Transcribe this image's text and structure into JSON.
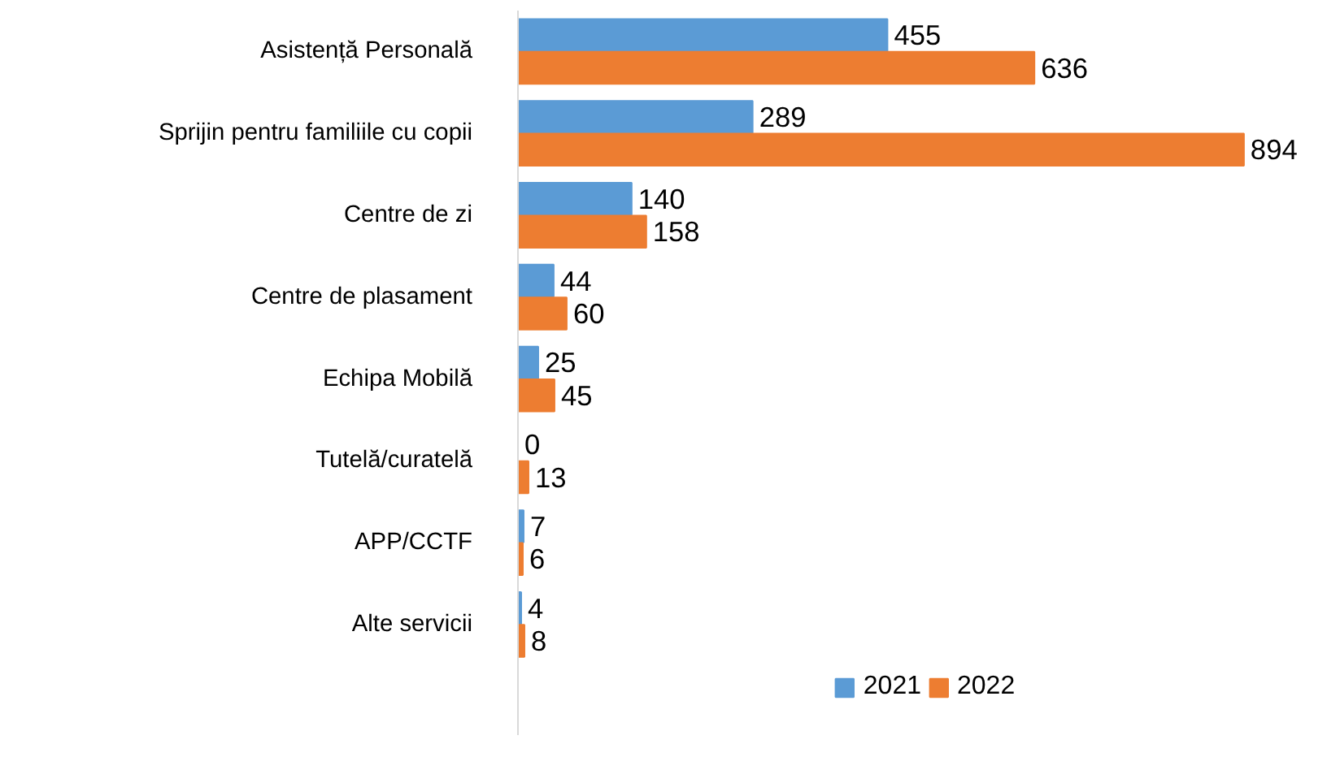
{
  "chart_data": {
    "type": "bar",
    "orientation": "horizontal",
    "categories": [
      "Asistență Personală",
      "Sprijin pentru familiile cu copii",
      "Centre de zi",
      "Centre de plasament",
      "Echipa Mobilă",
      "Tutelă/curatelă",
      "APP/CCTF",
      "Alte servicii"
    ],
    "series": [
      {
        "name": "2021",
        "color": "#5b9bd5",
        "values": [
          455,
          289,
          140,
          44,
          25,
          0,
          7,
          4
        ]
      },
      {
        "name": "2022",
        "color": "#ed7d31",
        "values": [
          636,
          894,
          158,
          60,
          45,
          13,
          6,
          8
        ]
      }
    ],
    "legend": "bottom",
    "data_labels": true
  }
}
